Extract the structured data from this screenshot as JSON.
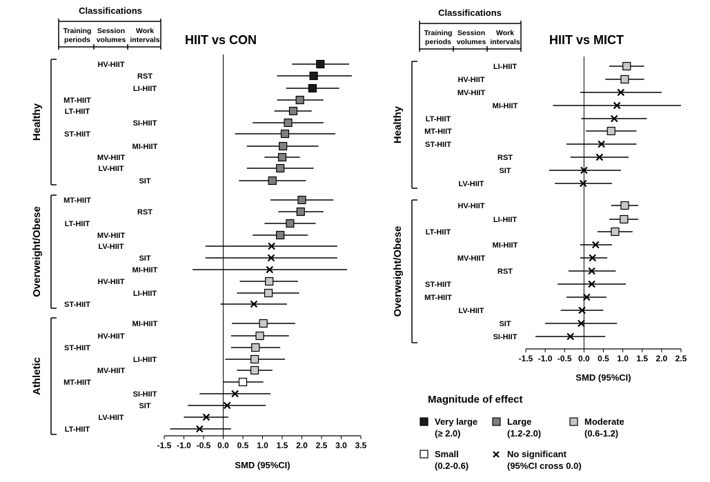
{
  "colors": {
    "very_large": "#1a1a1a",
    "large": "#7f7f7f",
    "moderate": "#c8c8c8",
    "small": "#ffffff",
    "line": "#000000"
  },
  "classifications": {
    "title": "Classifications",
    "col1": [
      "Training",
      "periods"
    ],
    "col2": [
      "Session",
      "volumes"
    ],
    "col3": [
      "Work",
      "intervals"
    ]
  },
  "chart_data": [
    {
      "type": "scatter",
      "subtype": "forest-plot",
      "title": "HIIT vs CON",
      "xlabel": "SMD (95%CI)",
      "xlim": [
        -1.5,
        3.5
      ],
      "xticks": [
        "-1.5",
        "-1.0",
        "-0.5",
        "0.0",
        "0.5",
        "1.0",
        "1.5",
        "2.0",
        "2.5",
        "3.0",
        "3.5"
      ],
      "groups": [
        {
          "name": "Healthy",
          "rows": [
            {
              "label": "HV-HIIT",
              "col": 1,
              "smd": 2.47,
              "lo": 1.75,
              "hi": 3.2,
              "magnitude": "very_large"
            },
            {
              "label": "RST",
              "col": 2,
              "smd": 2.3,
              "lo": 1.37,
              "hi": 3.27,
              "magnitude": "very_large"
            },
            {
              "label": "LI-HIIT",
              "col": 2,
              "smd": 2.27,
              "lo": 1.6,
              "hi": 2.95,
              "magnitude": "very_large"
            },
            {
              "label": "MT-HIIT",
              "col": 0,
              "smd": 1.95,
              "lo": 1.37,
              "hi": 2.55,
              "magnitude": "large"
            },
            {
              "label": "LT-HIIT",
              "col": 0,
              "smd": 1.78,
              "lo": 1.3,
              "hi": 2.25,
              "magnitude": "large"
            },
            {
              "label": "SI-HIIT",
              "col": 2,
              "smd": 1.65,
              "lo": 0.75,
              "hi": 2.55,
              "magnitude": "large"
            },
            {
              "label": "ST-HIIT",
              "col": 0,
              "smd": 1.57,
              "lo": 0.3,
              "hi": 2.85,
              "magnitude": "large"
            },
            {
              "label": "MI-HIIT",
              "col": 2,
              "smd": 1.52,
              "lo": 0.6,
              "hi": 2.42,
              "magnitude": "large"
            },
            {
              "label": "MV-HIIT",
              "col": 1,
              "smd": 1.5,
              "lo": 1.05,
              "hi": 1.95,
              "magnitude": "large"
            },
            {
              "label": "LV-HIIT",
              "col": 1,
              "smd": 1.45,
              "lo": 0.6,
              "hi": 2.3,
              "magnitude": "large"
            },
            {
              "label": "SIT",
              "col": 2,
              "smd": 1.25,
              "lo": 0.4,
              "hi": 2.1,
              "magnitude": "large"
            }
          ]
        },
        {
          "name": "Overweight/Obese",
          "rows": [
            {
              "label": "MT-HIIT",
              "col": 0,
              "smd": 2.0,
              "lo": 1.2,
              "hi": 2.8,
              "magnitude": "large"
            },
            {
              "label": "RST",
              "col": 2,
              "smd": 1.97,
              "lo": 1.4,
              "hi": 2.55,
              "magnitude": "large"
            },
            {
              "label": "LT-HIIT",
              "col": 0,
              "smd": 1.7,
              "lo": 1.05,
              "hi": 2.35,
              "magnitude": "large"
            },
            {
              "label": "MV-HIIT",
              "col": 1,
              "smd": 1.45,
              "lo": 0.75,
              "hi": 2.15,
              "magnitude": "large"
            },
            {
              "label": "LV-HIIT",
              "col": 1,
              "smd": 1.23,
              "lo": -0.45,
              "hi": 2.9,
              "magnitude": "ns"
            },
            {
              "label": "SIT",
              "col": 2,
              "smd": 1.22,
              "lo": -0.45,
              "hi": 2.9,
              "magnitude": "ns"
            },
            {
              "label": "MI-HIIT",
              "col": 2,
              "smd": 1.18,
              "lo": -0.78,
              "hi": 3.15,
              "magnitude": "ns"
            },
            {
              "label": "HV-HIIT",
              "col": 1,
              "smd": 1.17,
              "lo": 0.42,
              "hi": 1.9,
              "magnitude": "moderate"
            },
            {
              "label": "LI-HIIT",
              "col": 2,
              "smd": 1.15,
              "lo": 0.35,
              "hi": 1.93,
              "magnitude": "moderate"
            },
            {
              "label": "ST-HIIT",
              "col": 0,
              "smd": 0.78,
              "lo": -0.07,
              "hi": 1.62,
              "magnitude": "ns"
            }
          ]
        },
        {
          "name": "Athletic",
          "rows": [
            {
              "label": "MI-HIIT",
              "col": 2,
              "smd": 1.02,
              "lo": 0.22,
              "hi": 1.83,
              "magnitude": "moderate"
            },
            {
              "label": "HV-HIIT",
              "col": 1,
              "smd": 0.93,
              "lo": 0.2,
              "hi": 1.67,
              "magnitude": "moderate"
            },
            {
              "label": "ST-HIIT",
              "col": 0,
              "smd": 0.82,
              "lo": 0.2,
              "hi": 1.45,
              "magnitude": "moderate"
            },
            {
              "label": "LI-HIIT",
              "col": 2,
              "smd": 0.8,
              "lo": 0.05,
              "hi": 1.57,
              "magnitude": "moderate"
            },
            {
              "label": "MV-HIIT",
              "col": 1,
              "smd": 0.8,
              "lo": 0.35,
              "hi": 1.25,
              "magnitude": "moderate"
            },
            {
              "label": "MT-HIIT",
              "col": 0,
              "smd": 0.5,
              "lo": 0.0,
              "hi": 1.02,
              "magnitude": "small"
            },
            {
              "label": "SI-HIIT",
              "col": 2,
              "smd": 0.3,
              "lo": -0.6,
              "hi": 1.2,
              "magnitude": "ns"
            },
            {
              "label": "SIT",
              "col": 2,
              "smd": 0.1,
              "lo": -0.9,
              "hi": 1.08,
              "magnitude": "ns"
            },
            {
              "label": "LV-HIIT",
              "col": 1,
              "smd": -0.43,
              "lo": -1.0,
              "hi": 0.13,
              "magnitude": "ns"
            },
            {
              "label": "LT-HIIT",
              "col": 0,
              "smd": -0.6,
              "lo": -1.35,
              "hi": 0.2,
              "magnitude": "ns"
            }
          ]
        }
      ]
    },
    {
      "type": "scatter",
      "subtype": "forest-plot",
      "title": "HIIT vs MICT",
      "xlabel": "SMD (95%CI)",
      "xlim": [
        -1.5,
        2.5
      ],
      "xticks": [
        "-1.5",
        "-1.0",
        "-0.5",
        "0.0",
        "0.5",
        "1.0",
        "1.5",
        "2.0",
        "2.5"
      ],
      "groups": [
        {
          "name": "Healthy",
          "rows": [
            {
              "label": "LI-HIIT",
              "col": 2,
              "smd": 1.1,
              "lo": 0.65,
              "hi": 1.55,
              "magnitude": "moderate"
            },
            {
              "label": "HV-HIIT",
              "col": 1,
              "smd": 1.05,
              "lo": 0.55,
              "hi": 1.55,
              "magnitude": "moderate"
            },
            {
              "label": "MV-HIIT",
              "col": 1,
              "smd": 0.95,
              "lo": -0.1,
              "hi": 2.0,
              "magnitude": "ns"
            },
            {
              "label": "MI-HIIT",
              "col": 2,
              "smd": 0.85,
              "lo": -0.8,
              "hi": 2.5,
              "magnitude": "ns"
            },
            {
              "label": "LT-HIIT",
              "col": 0,
              "smd": 0.78,
              "lo": -0.07,
              "hi": 1.62,
              "magnitude": "ns"
            },
            {
              "label": "MT-HIIT",
              "col": 0,
              "smd": 0.7,
              "lo": 0.05,
              "hi": 1.35,
              "magnitude": "moderate"
            },
            {
              "label": "ST-HIIT",
              "col": 0,
              "smd": 0.45,
              "lo": -0.45,
              "hi": 1.35,
              "magnitude": "ns"
            },
            {
              "label": "RST",
              "col": 2,
              "smd": 0.4,
              "lo": -0.35,
              "hi": 1.15,
              "magnitude": "ns"
            },
            {
              "label": "SIT",
              "col": 2,
              "smd": 0.0,
              "lo": -0.9,
              "hi": 0.95,
              "magnitude": "ns"
            },
            {
              "label": "LV-HIIT",
              "col": 1,
              "smd": -0.02,
              "lo": -0.75,
              "hi": 0.72,
              "magnitude": "ns"
            }
          ]
        },
        {
          "name": "Overweight/Obese",
          "rows": [
            {
              "label": "HV-HIIT",
              "col": 1,
              "smd": 1.05,
              "lo": 0.7,
              "hi": 1.4,
              "magnitude": "moderate"
            },
            {
              "label": "LI-HIIT",
              "col": 2,
              "smd": 1.03,
              "lo": 0.65,
              "hi": 1.4,
              "magnitude": "moderate"
            },
            {
              "label": "LT-HIIT",
              "col": 0,
              "smd": 0.8,
              "lo": 0.35,
              "hi": 1.25,
              "magnitude": "moderate"
            },
            {
              "label": "MI-HIIT",
              "col": 2,
              "smd": 0.3,
              "lo": -0.1,
              "hi": 0.72,
              "magnitude": "ns"
            },
            {
              "label": "MV-HIIT",
              "col": 1,
              "smd": 0.22,
              "lo": -0.1,
              "hi": 0.6,
              "magnitude": "ns"
            },
            {
              "label": "RST",
              "col": 2,
              "smd": 0.2,
              "lo": -0.4,
              "hi": 0.82,
              "magnitude": "ns"
            },
            {
              "label": "ST-HIIT",
              "col": 0,
              "smd": 0.2,
              "lo": -0.68,
              "hi": 1.08,
              "magnitude": "ns"
            },
            {
              "label": "MT-HIIT",
              "col": 0,
              "smd": 0.07,
              "lo": -0.45,
              "hi": 0.58,
              "magnitude": "ns"
            },
            {
              "label": "LV-HIIT",
              "col": 1,
              "smd": -0.05,
              "lo": -0.6,
              "hi": 0.5,
              "magnitude": "ns"
            },
            {
              "label": "SIT",
              "col": 2,
              "smd": -0.07,
              "lo": -1.0,
              "hi": 0.85,
              "magnitude": "ns"
            },
            {
              "label": "SI-HIIT",
              "col": 2,
              "smd": -0.35,
              "lo": -1.25,
              "hi": 0.55,
              "magnitude": "ns"
            }
          ]
        }
      ]
    }
  ],
  "legend": {
    "title": "Magnitude of effect",
    "items": [
      {
        "key": "very_large",
        "line1": "Very large",
        "line2": "(≥ 2.0)"
      },
      {
        "key": "large",
        "line1": "Large",
        "line2": "(1.2-2.0)"
      },
      {
        "key": "moderate",
        "line1": "Moderate",
        "line2": "(0.6-1.2)"
      },
      {
        "key": "small",
        "line1": "Small",
        "line2": "(0.2-0.6)"
      },
      {
        "key": "ns",
        "line1": "No significant",
        "line2": "(95%CI cross 0.0)"
      }
    ]
  }
}
